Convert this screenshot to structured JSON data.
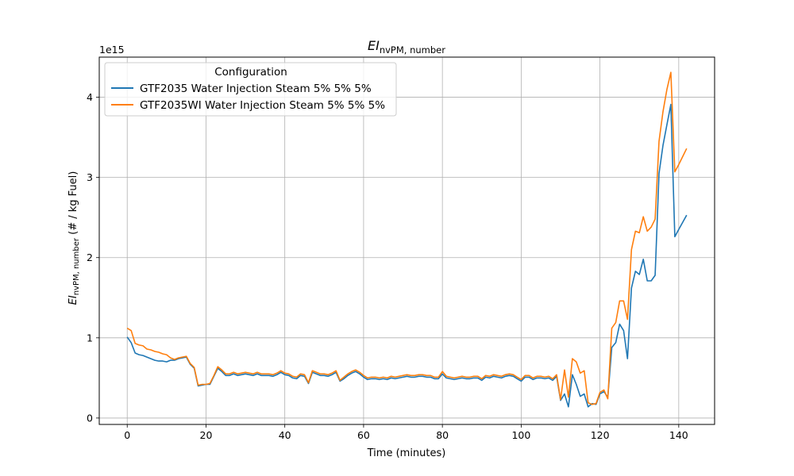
{
  "chart_data": {
    "type": "line",
    "title": "EI",
    "title_sub": "nvPM, number",
    "xlabel": "Time (minutes)",
    "ylabel_main": "EI",
    "ylabel_sub": "nvPM, number",
    "ylabel_suffix": " (# / kg Fuel)",
    "offset_text": "1e15",
    "xlim": [
      -7.1,
      149.1
    ],
    "ylim": [
      -0.08,
      4.5
    ],
    "x_ticks": [
      0,
      20,
      40,
      60,
      80,
      100,
      120,
      140
    ],
    "y_ticks": [
      0,
      1,
      2,
      3,
      4
    ],
    "grid": true,
    "legend": {
      "title": "Configuration",
      "position": "top-left"
    },
    "series": [
      {
        "name": "GTF2035 Water Injection Steam 5% 5% 5%",
        "color": "#1f77b4",
        "x": [
          0,
          1,
          2,
          3,
          4,
          5,
          6,
          7,
          8,
          9,
          10,
          11,
          12,
          13,
          14,
          15,
          16,
          17,
          18,
          19,
          20,
          21,
          22,
          23,
          24,
          25,
          26,
          27,
          28,
          29,
          30,
          31,
          32,
          33,
          34,
          35,
          36,
          37,
          38,
          39,
          40,
          41,
          42,
          43,
          44,
          45,
          46,
          47,
          48,
          49,
          50,
          51,
          52,
          53,
          54,
          55,
          56,
          57,
          58,
          59,
          60,
          61,
          62,
          63,
          64,
          65,
          66,
          67,
          68,
          69,
          70,
          71,
          72,
          73,
          74,
          75,
          76,
          77,
          78,
          79,
          80,
          81,
          82,
          83,
          84,
          85,
          86,
          87,
          88,
          89,
          90,
          91,
          92,
          93,
          94,
          95,
          96,
          97,
          98,
          99,
          100,
          101,
          102,
          103,
          104,
          105,
          106,
          107,
          108,
          109,
          110,
          111,
          112,
          113,
          114,
          115,
          116,
          117,
          118,
          119,
          120,
          121,
          122,
          123,
          124,
          125,
          126,
          127,
          128,
          129,
          130,
          131,
          132,
          133,
          134,
          135,
          136,
          137,
          138,
          139,
          140,
          141,
          142
        ],
        "y": [
          1.01,
          0.94,
          0.81,
          0.79,
          0.78,
          0.76,
          0.74,
          0.72,
          0.71,
          0.71,
          0.7,
          0.72,
          0.72,
          0.74,
          0.75,
          0.76,
          0.67,
          0.62,
          0.4,
          0.41,
          0.42,
          0.42,
          0.52,
          0.62,
          0.58,
          0.53,
          0.53,
          0.55,
          0.53,
          0.54,
          0.55,
          0.54,
          0.53,
          0.55,
          0.53,
          0.53,
          0.53,
          0.52,
          0.54,
          0.57,
          0.54,
          0.53,
          0.5,
          0.49,
          0.53,
          0.52,
          0.43,
          0.57,
          0.55,
          0.53,
          0.53,
          0.52,
          0.54,
          0.57,
          0.46,
          0.49,
          0.53,
          0.56,
          0.58,
          0.55,
          0.51,
          0.48,
          0.49,
          0.49,
          0.48,
          0.49,
          0.48,
          0.5,
          0.49,
          0.5,
          0.51,
          0.52,
          0.51,
          0.51,
          0.52,
          0.52,
          0.51,
          0.51,
          0.49,
          0.49,
          0.55,
          0.5,
          0.49,
          0.48,
          0.49,
          0.5,
          0.49,
          0.49,
          0.5,
          0.5,
          0.47,
          0.51,
          0.5,
          0.52,
          0.51,
          0.5,
          0.52,
          0.53,
          0.52,
          0.49,
          0.46,
          0.51,
          0.51,
          0.48,
          0.5,
          0.5,
          0.49,
          0.5,
          0.47,
          0.52,
          0.22,
          0.3,
          0.14,
          0.54,
          0.42,
          0.27,
          0.3,
          0.14,
          0.18,
          0.17,
          0.3,
          0.33,
          0.26,
          0.88,
          0.94,
          1.17,
          1.09,
          0.74,
          1.62,
          1.83,
          1.79,
          1.98,
          1.71,
          1.71,
          1.78,
          3.05,
          3.4,
          3.66,
          3.91,
          2.26,
          2.35,
          2.44,
          2.53
        ]
      },
      {
        "name": "GTF2035WI Water Injection Steam 5% 5% 5%",
        "color": "#ff7f0e",
        "x": [
          0,
          1,
          2,
          3,
          4,
          5,
          6,
          7,
          8,
          9,
          10,
          11,
          12,
          13,
          14,
          15,
          16,
          17,
          18,
          19,
          20,
          21,
          22,
          23,
          24,
          25,
          26,
          27,
          28,
          29,
          30,
          31,
          32,
          33,
          34,
          35,
          36,
          37,
          38,
          39,
          40,
          41,
          42,
          43,
          44,
          45,
          46,
          47,
          48,
          49,
          50,
          51,
          52,
          53,
          54,
          55,
          56,
          57,
          58,
          59,
          60,
          61,
          62,
          63,
          64,
          65,
          66,
          67,
          68,
          69,
          70,
          71,
          72,
          73,
          74,
          75,
          76,
          77,
          78,
          79,
          80,
          81,
          82,
          83,
          84,
          85,
          86,
          87,
          88,
          89,
          90,
          91,
          92,
          93,
          94,
          95,
          96,
          97,
          98,
          99,
          100,
          101,
          102,
          103,
          104,
          105,
          106,
          107,
          108,
          109,
          110,
          111,
          112,
          113,
          114,
          115,
          116,
          117,
          118,
          119,
          120,
          121,
          122,
          123,
          124,
          125,
          126,
          127,
          128,
          129,
          130,
          131,
          132,
          133,
          134,
          135,
          136,
          137,
          138,
          139,
          140,
          141,
          142
        ],
        "y": [
          1.12,
          1.09,
          0.93,
          0.91,
          0.9,
          0.86,
          0.85,
          0.83,
          0.82,
          0.8,
          0.79,
          0.75,
          0.73,
          0.75,
          0.76,
          0.77,
          0.68,
          0.63,
          0.41,
          0.42,
          0.42,
          0.43,
          0.53,
          0.64,
          0.6,
          0.55,
          0.55,
          0.57,
          0.55,
          0.56,
          0.57,
          0.56,
          0.55,
          0.57,
          0.55,
          0.55,
          0.55,
          0.54,
          0.56,
          0.59,
          0.56,
          0.55,
          0.52,
          0.51,
          0.55,
          0.54,
          0.44,
          0.59,
          0.57,
          0.55,
          0.55,
          0.54,
          0.56,
          0.59,
          0.47,
          0.51,
          0.55,
          0.58,
          0.6,
          0.57,
          0.53,
          0.5,
          0.51,
          0.51,
          0.5,
          0.51,
          0.5,
          0.52,
          0.51,
          0.52,
          0.53,
          0.54,
          0.53,
          0.53,
          0.54,
          0.54,
          0.53,
          0.53,
          0.51,
          0.51,
          0.58,
          0.52,
          0.51,
          0.5,
          0.51,
          0.52,
          0.51,
          0.51,
          0.52,
          0.52,
          0.49,
          0.53,
          0.52,
          0.54,
          0.53,
          0.52,
          0.54,
          0.55,
          0.54,
          0.51,
          0.48,
          0.53,
          0.53,
          0.5,
          0.52,
          0.52,
          0.51,
          0.52,
          0.49,
          0.54,
          0.23,
          0.6,
          0.26,
          0.74,
          0.7,
          0.56,
          0.59,
          0.19,
          0.17,
          0.18,
          0.32,
          0.35,
          0.24,
          1.12,
          1.19,
          1.46,
          1.46,
          1.23,
          2.1,
          2.33,
          2.31,
          2.51,
          2.33,
          2.38,
          2.48,
          3.45,
          3.82,
          4.1,
          4.31,
          3.07,
          3.16,
          3.26,
          3.36
        ]
      }
    ]
  }
}
